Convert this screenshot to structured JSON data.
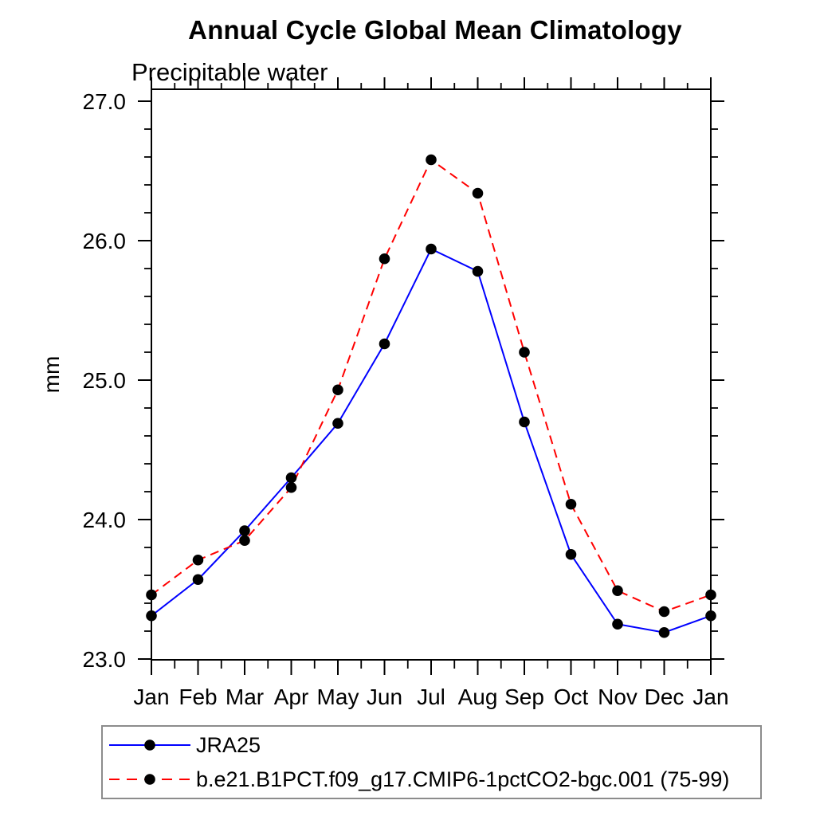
{
  "chart_data": {
    "type": "line",
    "title": "Annual Cycle Global Mean Climatology",
    "subtitle": "Precipitable water",
    "xlabel": "",
    "ylabel": "mm",
    "x_categories": [
      "Jan",
      "Feb",
      "Mar",
      "Apr",
      "May",
      "Jun",
      "Jul",
      "Aug",
      "Sep",
      "Oct",
      "Nov",
      "Dec",
      "Jan"
    ],
    "ylim": [
      23.0,
      27.1
    ],
    "y_major_ticks": [
      27.0,
      26.0,
      25.0,
      24.0,
      23.0
    ],
    "y_tick_labels": [
      "27.0",
      "26.0",
      "25.0",
      "24.0",
      "23.0"
    ],
    "y_minor_interval": 0.2,
    "x_minor_ticks_between_months": 1,
    "grid": false,
    "frame": "full-box-with-outward-ticks",
    "legend_position": "bottom-left-box",
    "marker": {
      "shape": "circle",
      "color": "#000000",
      "radius": 6.8
    },
    "series": [
      {
        "name": "JRA25",
        "color": "#0000ff",
        "style": "solid",
        "values": [
          23.31,
          23.57,
          23.92,
          24.3,
          24.69,
          25.26,
          25.94,
          25.78,
          24.7,
          23.75,
          23.25,
          23.19,
          23.31
        ]
      },
      {
        "name": "b.e21.B1PCT.f09_g17.CMIP6-1pctCO2-bgc.001 (75-99)",
        "color": "#ff0000",
        "style": "dashed",
        "values": [
          23.46,
          23.71,
          23.85,
          24.23,
          24.93,
          25.87,
          26.58,
          26.34,
          25.2,
          24.11,
          23.49,
          23.34,
          23.46
        ]
      }
    ]
  }
}
